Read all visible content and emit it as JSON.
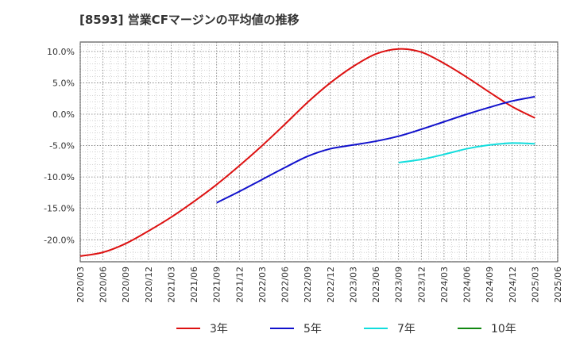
{
  "chart_data": {
    "type": "line",
    "title": "[8593]  営業CFマージンの平均値の推移",
    "ylim": [
      -23.5,
      11.5
    ],
    "yticks": [
      10,
      5,
      0,
      -5,
      -10,
      -15,
      -20
    ],
    "ytick_labels": [
      "10.0%",
      "5.0%",
      "0.0%",
      "-5.0%",
      "-10.0%",
      "-15.0%",
      "-20.0%"
    ],
    "xlim": [
      "2020/03",
      "2025/06"
    ],
    "xtick_labels": [
      "2020/03",
      "2020/06",
      "2020/09",
      "2020/12",
      "2021/03",
      "2021/06",
      "2021/09",
      "2021/12",
      "2022/03",
      "2022/06",
      "2022/09",
      "2022/12",
      "2023/03",
      "2023/06",
      "2023/09",
      "2023/12",
      "2024/03",
      "2024/06",
      "2024/09",
      "2024/12",
      "2025/03",
      "2025/06"
    ],
    "grid": true,
    "legend_position": "bottom",
    "series": [
      {
        "name": "3年",
        "color": "#dd1111",
        "x": [
          "2020/03",
          "2020/06",
          "2020/09",
          "2020/12",
          "2021/03",
          "2021/06",
          "2021/09",
          "2021/12",
          "2022/03",
          "2022/06",
          "2022/09",
          "2022/12",
          "2023/03",
          "2023/06",
          "2023/09",
          "2023/12",
          "2024/03",
          "2024/06",
          "2024/09",
          "2024/12",
          "2025/03"
        ],
        "values": [
          -22.6,
          -22.0,
          -20.6,
          -18.6,
          -16.4,
          -13.9,
          -11.2,
          -8.2,
          -5.0,
          -1.6,
          1.9,
          5.0,
          7.6,
          9.6,
          10.4,
          9.9,
          8.1,
          5.9,
          3.5,
          1.2,
          -0.6
        ]
      },
      {
        "name": "5年",
        "color": "#1111cc",
        "x": [
          "2021/09",
          "2021/12",
          "2022/03",
          "2022/06",
          "2022/09",
          "2022/12",
          "2023/03",
          "2023/06",
          "2023/09",
          "2023/12",
          "2024/03",
          "2024/06",
          "2024/09",
          "2024/12",
          "2025/03"
        ],
        "values": [
          -14.1,
          -12.3,
          -10.4,
          -8.5,
          -6.7,
          -5.5,
          -4.9,
          -4.3,
          -3.5,
          -2.4,
          -1.2,
          0.0,
          1.1,
          2.1,
          2.8
        ]
      },
      {
        "name": "7年",
        "color": "#11dddd",
        "x": [
          "2023/09",
          "2023/12",
          "2024/03",
          "2024/06",
          "2024/09",
          "2024/12",
          "2025/03"
        ],
        "values": [
          -7.7,
          -7.2,
          -6.4,
          -5.5,
          -4.9,
          -4.6,
          -4.7
        ]
      },
      {
        "name": "10年",
        "color": "#118811",
        "x": [],
        "values": []
      }
    ]
  }
}
